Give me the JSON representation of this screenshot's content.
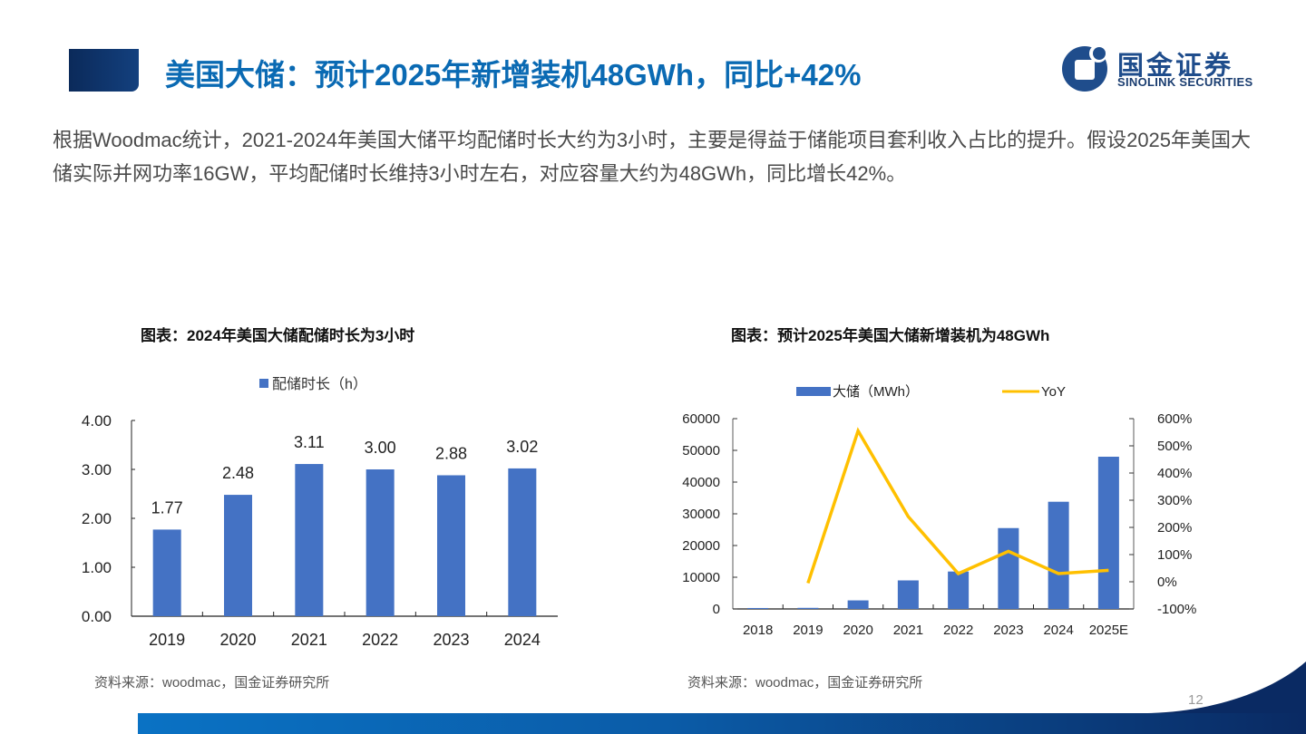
{
  "header": {
    "title": "美国大储：预计2025年新增装机48GWh，同比+42%",
    "logo": {
      "cn": "国金证券",
      "en": "SINOLINK SECURITIES",
      "icon": "sinolink-logo-icon"
    }
  },
  "body": {
    "paragraph": "根据Woodmac统计，2021-2024年美国大储平均配储时长大约为3小时，主要是得益于储能项目套利收入占比的提升。假设2025年美国大储实际并网功率16GW，平均配储时长维持3小时左右，对应容量大约为48GWh，同比增长42%。"
  },
  "charts": {
    "left": {
      "title": "图表：2024年美国大储配储时长为3小时",
      "source": "资料来源：woodmac，国金证券研究所"
    },
    "right": {
      "title": "图表：预计2025年美国大储新增装机为48GWh",
      "source": "资料来源：woodmac，国金证券研究所"
    }
  },
  "footer": {
    "page_number": "12"
  },
  "colors": {
    "title_blue": "#0a6ab3",
    "bar_blue": "#4472c4",
    "line_yellow": "#ffc000",
    "navy": "#0b2a5a"
  },
  "chart_data": [
    {
      "type": "bar",
      "title": "图表：2024年美国大储配储时长为3小时",
      "categories": [
        "2019",
        "2020",
        "2021",
        "2022",
        "2023",
        "2024"
      ],
      "series": [
        {
          "name": "配储时长（h）",
          "values": [
            1.77,
            2.48,
            3.11,
            3.0,
            2.88,
            3.02
          ]
        }
      ],
      "data_labels": [
        "1.77",
        "2.48",
        "3.11",
        "3.00",
        "2.88",
        "3.02"
      ],
      "yticks": [
        "0.00",
        "1.00",
        "2.00",
        "3.00",
        "4.00"
      ],
      "ylim": [
        0,
        4
      ],
      "xlabel": "",
      "ylabel": "",
      "legend_position": "top",
      "grid": false
    },
    {
      "type": "bar+line",
      "title": "图表：预计2025年美国大储新增装机为48GWh",
      "categories": [
        "2018",
        "2019",
        "2020",
        "2021",
        "2022",
        "2023",
        "2024",
        "2025E"
      ],
      "series": [
        {
          "name": "大储（MWh）",
          "type": "bar",
          "axis": "left",
          "values": [
            300,
            350,
            2700,
            9000,
            11800,
            25500,
            33800,
            48000
          ]
        },
        {
          "name": "YoY",
          "type": "line",
          "axis": "right",
          "values": [
            null,
            -5,
            555,
            240,
            30,
            112,
            30,
            42
          ],
          "unit": "%"
        }
      ],
      "yticks_left": [
        "0",
        "10000",
        "20000",
        "30000",
        "40000",
        "50000",
        "60000"
      ],
      "yticks_right": [
        "-100%",
        "0%",
        "100%",
        "200%",
        "300%",
        "400%",
        "500%",
        "600%"
      ],
      "ylim_left": [
        0,
        60000
      ],
      "ylim_right": [
        -100,
        600
      ],
      "legend_position": "top",
      "grid": false
    }
  ]
}
